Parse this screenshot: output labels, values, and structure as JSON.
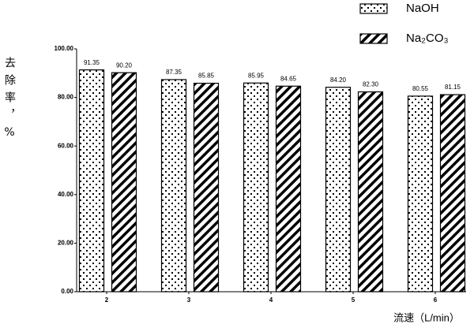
{
  "chart_data": {
    "type": "bar",
    "xlabel": "流速（L/min）",
    "ylabel": "去除率，%",
    "categories": [
      "2",
      "3",
      "4",
      "5",
      "6"
    ],
    "series": [
      {
        "name": "NaOH",
        "color": "#000000",
        "pattern": "dots",
        "values": [
          91.35,
          87.35,
          85.95,
          84.2,
          80.55
        ],
        "value_labels": [
          "91.35",
          "87.35",
          "85.95",
          "84.20",
          "80.55"
        ]
      },
      {
        "name": "Na₂CO₃",
        "color": "#000000",
        "pattern": "hatch",
        "values": [
          90.2,
          85.85,
          84.65,
          82.3,
          81.15
        ],
        "value_labels": [
          "90.20",
          "85.85",
          "84.65",
          "82.30",
          "81.15"
        ]
      }
    ],
    "ylim": [
      0,
      100
    ],
    "yticks": [
      {
        "value": 0,
        "label": "0.00"
      },
      {
        "value": 20,
        "label": "20.00"
      },
      {
        "value": 40,
        "label": "40.00"
      },
      {
        "value": 60,
        "label": "60.00"
      },
      {
        "value": 80,
        "label": "80.00"
      },
      {
        "value": 100,
        "label": "100.00"
      }
    ],
    "legend": "top-right"
  }
}
